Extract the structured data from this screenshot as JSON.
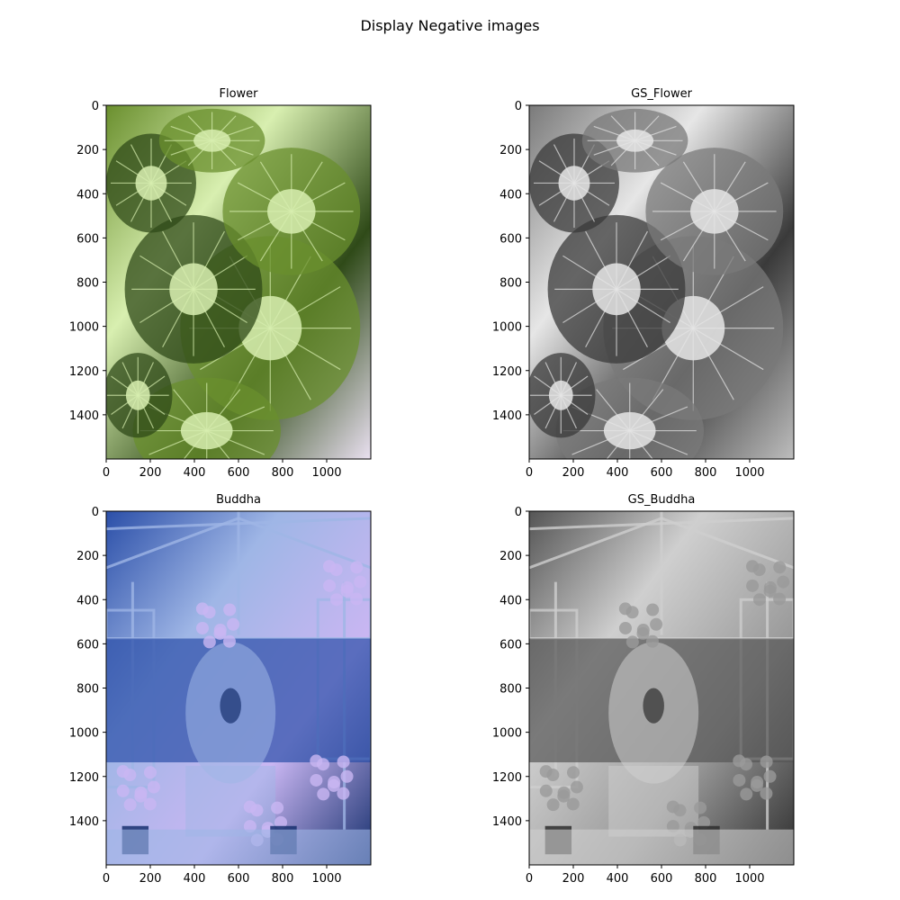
{
  "figure": {
    "suptitle": "Display Negative images",
    "background": "#ffffff"
  },
  "chart_data": [
    {
      "type": "image",
      "title": "Flower",
      "xticks": [
        0,
        200,
        400,
        600,
        800,
        1000
      ],
      "yticks": [
        0,
        200,
        400,
        600,
        800,
        1000,
        1200,
        1400
      ],
      "xlim": [
        0,
        1200
      ],
      "ylim": [
        1600,
        0
      ],
      "image_description_colors": [
        "#6a8f2e",
        "#d8efb0",
        "#2f4a18",
        "#e9e0f0"
      ],
      "scheme": "negative-color"
    },
    {
      "type": "image",
      "title": "GS_Flower",
      "xticks": [
        0,
        200,
        400,
        600,
        800,
        1000
      ],
      "yticks": [
        0,
        200,
        400,
        600,
        800,
        1000,
        1200,
        1400
      ],
      "xlim": [
        0,
        1200
      ],
      "ylim": [
        1600,
        0
      ],
      "image_description_colors": [
        "#7a7a7a",
        "#e6e6e6",
        "#3a3a3a",
        "#bdbdbd"
      ],
      "scheme": "negative-grayscale"
    },
    {
      "type": "image",
      "title": "Buddha",
      "xticks": [
        0,
        200,
        400,
        600,
        800,
        1000
      ],
      "yticks": [
        0,
        200,
        400,
        600,
        800,
        1000,
        1200,
        1400
      ],
      "xlim": [
        0,
        1200
      ],
      "ylim": [
        1600,
        0
      ],
      "image_description_colors": [
        "#2b4fa8",
        "#9fb6e6",
        "#c9b6f2",
        "#17306e"
      ],
      "scheme": "negative-color"
    },
    {
      "type": "image",
      "title": "GS_Buddha",
      "xticks": [
        0,
        200,
        400,
        600,
        800,
        1000
      ],
      "yticks": [
        0,
        200,
        400,
        600,
        800,
        1000,
        1200,
        1400
      ],
      "xlim": [
        0,
        1200
      ],
      "ylim": [
        1600,
        0
      ],
      "image_description_colors": [
        "#555555",
        "#cfcfcf",
        "#9a9a9a",
        "#2e2e2e"
      ],
      "scheme": "negative-grayscale"
    }
  ]
}
